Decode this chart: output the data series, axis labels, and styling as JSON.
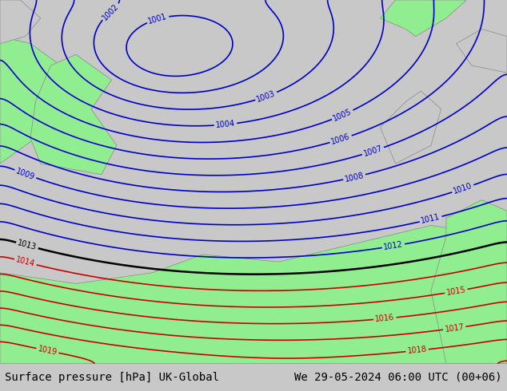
{
  "title_left": "Surface pressure [hPa] UK-Global",
  "title_right": "We 29-05-2024 06:00 UTC (00+06)",
  "title_fontsize": 10,
  "title_color": "#000000",
  "bg_color": "#d0d0d0",
  "land_color_green": "#90ee90",
  "land_color_gray": "#c8c8c8",
  "blue_contour_color": "#0000cc",
  "black_contour_color": "#000000",
  "red_contour_color": "#cc0000",
  "contour_linewidth": 1.2,
  "label_fontsize": 7,
  "bottom_bar_color": "#d8d8d8",
  "pressure_min": 1000,
  "pressure_max": 1020
}
